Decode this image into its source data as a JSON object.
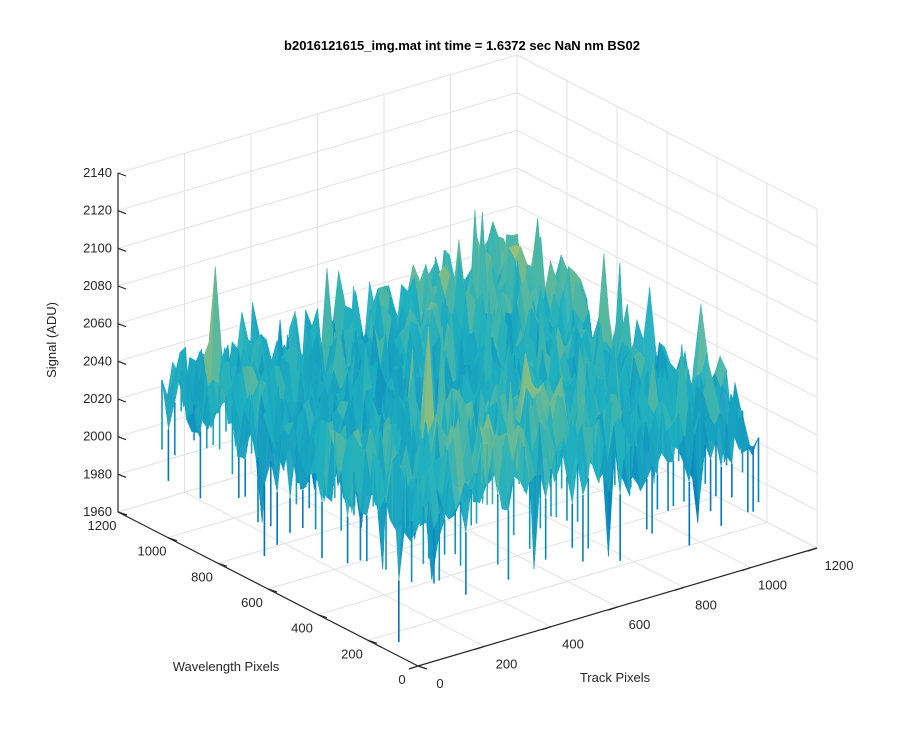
{
  "chart_data": {
    "type": "surface",
    "title": "b2016121615_img.mat int time = 1.6372 sec  NaN nm BS02",
    "xlabel": "Track Pixels",
    "ylabel": "Wavelength Pixels",
    "zlabel": "Signal (ADU)",
    "xlim": [
      0,
      1200
    ],
    "ylim": [
      0,
      1200
    ],
    "zlim": [
      1960,
      2140
    ],
    "x_ticks": [
      "0",
      "200",
      "400",
      "600",
      "800",
      "1000",
      "1200"
    ],
    "y_ticks": [
      "0",
      "200",
      "400",
      "600",
      "800",
      "1000",
      "1200"
    ],
    "z_ticks": [
      "1960",
      "1980",
      "2000",
      "2020",
      "2040",
      "2060",
      "2080",
      "2100",
      "2120",
      "2140"
    ],
    "data_extent": {
      "x": [
        0,
        1024
      ],
      "y": [
        0,
        1024
      ]
    },
    "signal_mean": 2040,
    "signal_range": [
      1975,
      2125
    ],
    "grid": true,
    "colormap": "parula",
    "colors": {
      "low": "#0072bd",
      "mid": "#1fb0c0",
      "high": "#e8c94a"
    }
  }
}
